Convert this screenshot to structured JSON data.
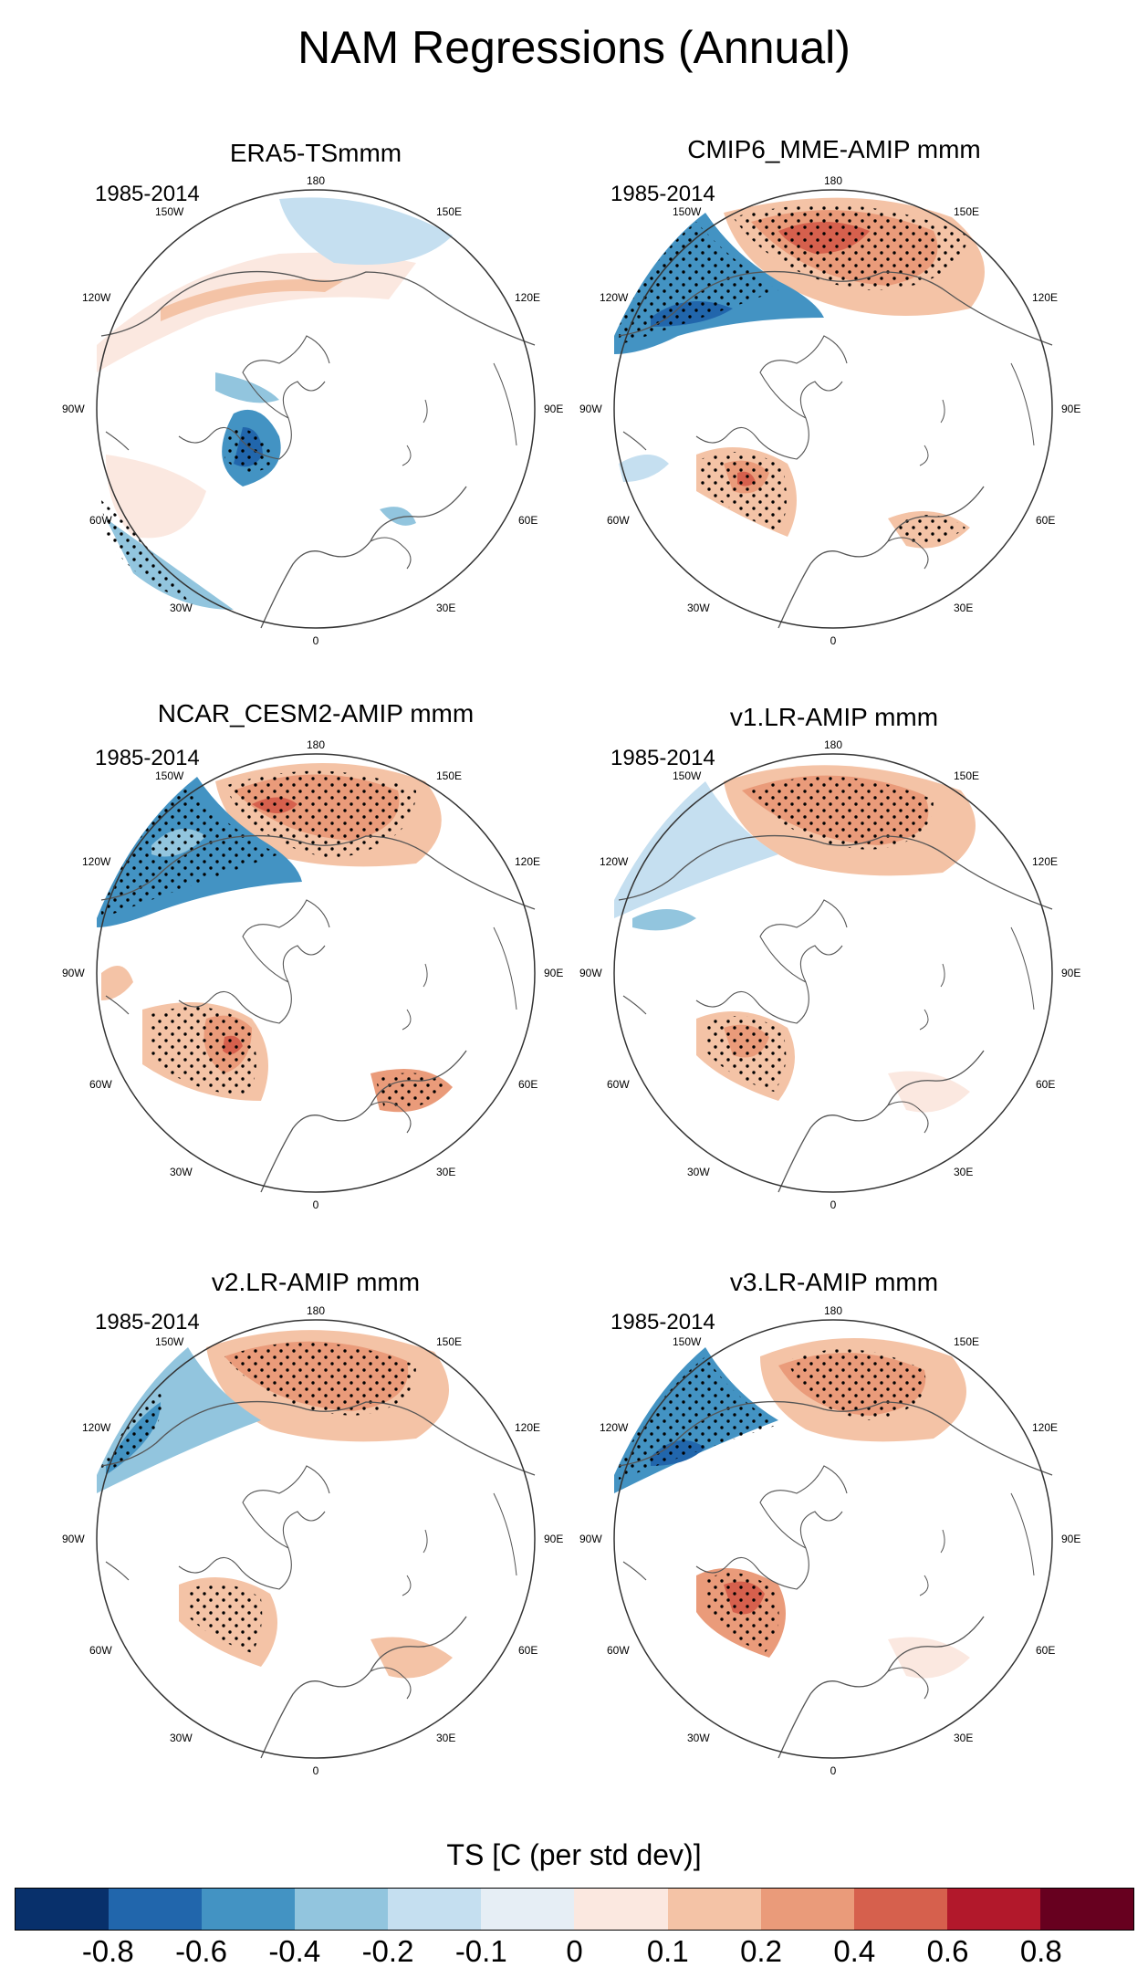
{
  "title": "NAM Regressions (Annual)",
  "panels": [
    {
      "title": "ERA5-TSmmm",
      "period": "1985-2014"
    },
    {
      "title": "CMIP6_MME-AMIP  mmm",
      "period": "1985-2014"
    },
    {
      "title": "NCAR_CESM2-AMIP  mmm",
      "period": "1985-2014"
    },
    {
      "title": "v1.LR-AMIP  mmm",
      "period": "1985-2014"
    },
    {
      "title": "v2.LR-AMIP  mmm",
      "period": "1985-2014"
    },
    {
      "title": "v3.LR-AMIP  mmm",
      "period": "1985-2014"
    }
  ],
  "longitude_labels": [
    "180",
    "150E",
    "120E",
    "90E",
    "60E",
    "30E",
    "0",
    "30W",
    "60W",
    "90W",
    "120W",
    "150W"
  ],
  "colorbar": {
    "title": "TS [C (per std dev)]",
    "colors": [
      "#08306b",
      "#2166ac",
      "#4393c3",
      "#92c5de",
      "#c5dff0",
      "#e6eef5",
      "#fbe8e0",
      "#f4c3a6",
      "#ea9b7a",
      "#d6604d",
      "#b2182b",
      "#67001f"
    ],
    "ticks": [
      "-0.8",
      "-0.6",
      "-0.4",
      "-0.2",
      "-0.1",
      "0",
      "0.1",
      "0.2",
      "0.4",
      "0.6",
      "0.8"
    ]
  }
}
